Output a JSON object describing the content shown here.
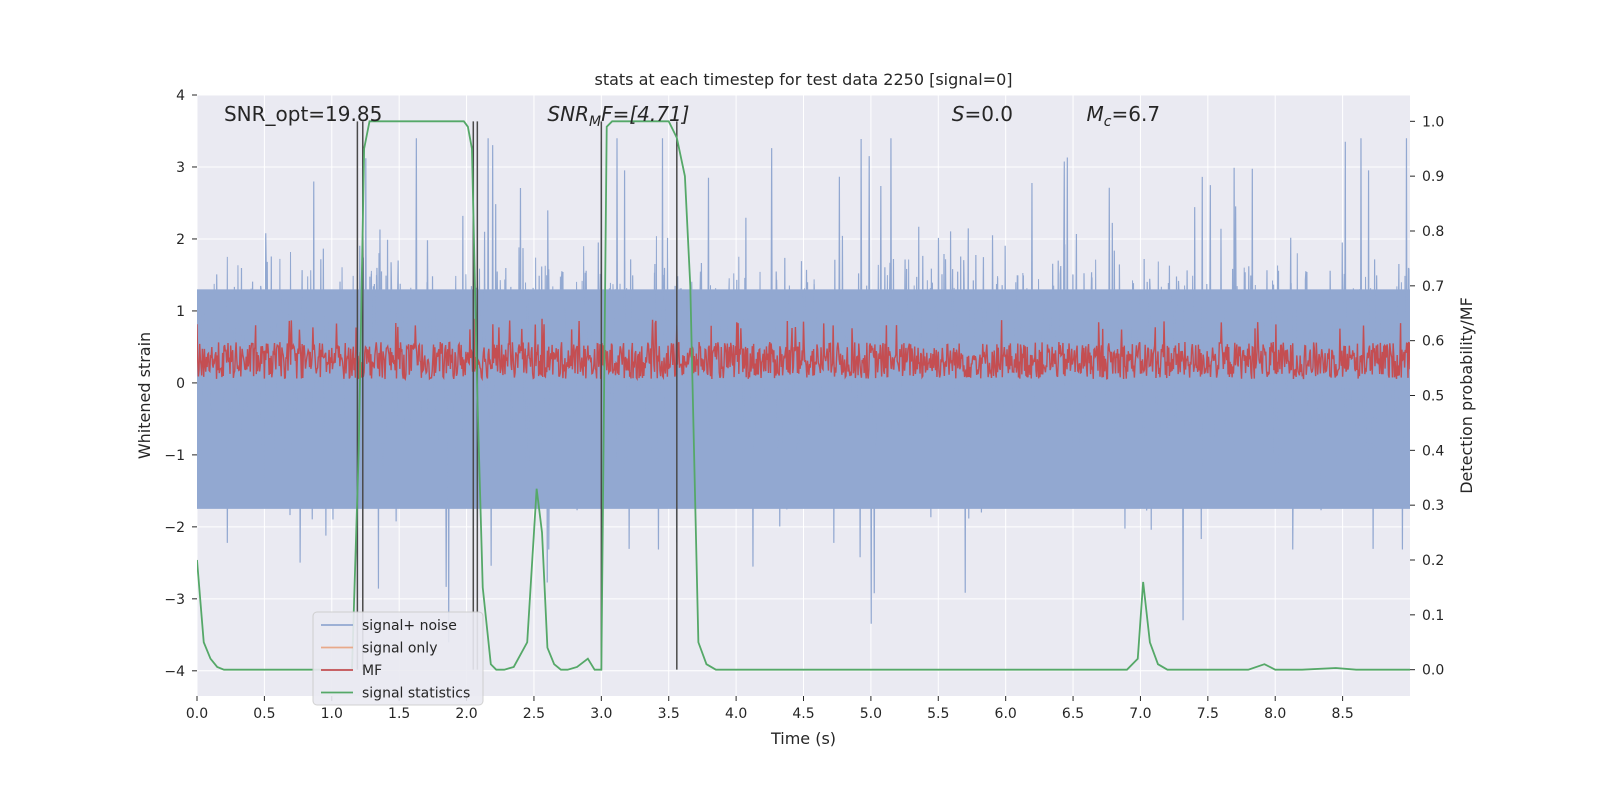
{
  "chart_data": {
    "type": "line",
    "title": "stats at each timestep for test data 2250 [signal=0]",
    "xlabel": "Time (s)",
    "ylabel": "Whitened strain",
    "ylabel_right": "Detection probability/MF",
    "xlim": [
      0.0,
      9.0
    ],
    "ylim": [
      -4.35,
      4.0
    ],
    "ylim_right": [
      -0.048,
      1.048
    ],
    "x_ticks": [
      "0.0",
      "0.5",
      "1.0",
      "1.5",
      "2.0",
      "2.5",
      "3.0",
      "3.5",
      "4.0",
      "4.5",
      "5.0",
      "5.5",
      "6.0",
      "6.5",
      "7.0",
      "7.5",
      "8.0",
      "8.5"
    ],
    "y_ticks_left": [
      "4",
      "3",
      "2",
      "1",
      "0",
      "−1",
      "−2",
      "−3",
      "−4"
    ],
    "y_ticks_right": [
      "1.0",
      "0.9",
      "0.8",
      "0.7",
      "0.6",
      "0.5",
      "0.4",
      "0.3",
      "0.2",
      "0.1",
      "0.0"
    ],
    "grid": true,
    "legend_position": "lower-left",
    "annotations": {
      "snr_opt": "SNR_opt=19.85",
      "snr_mf_base": "SNR",
      "snr_mf_sub": "M",
      "snr_mf_rest": "F=[4.71]",
      "s_base": "S",
      "s_rest": "=0.0",
      "mc_base": "M",
      "mc_sub": "c",
      "mc_rest": "=6.7"
    },
    "series": [
      {
        "name": "signal+ noise",
        "color": "#92a8d1",
        "description_level": "noise band roughly between -2 and +2.5 with peaks to ±3.3"
      },
      {
        "name": "signal only",
        "color": "#e8a98a",
        "values": []
      },
      {
        "name": "MF",
        "color": "#c44e52",
        "axis": "right",
        "range": [
          0.53,
          0.62
        ]
      },
      {
        "name": "signal statistics",
        "color": "#55a868",
        "axis": "right",
        "x": [
          0.0,
          0.05,
          0.1,
          0.15,
          0.2,
          0.3,
          0.5,
          0.8,
          1.0,
          1.15,
          1.2,
          1.24,
          1.28,
          1.35,
          1.5,
          1.8,
          1.98,
          2.01,
          2.04,
          2.08,
          2.12,
          2.18,
          2.22,
          2.28,
          2.35,
          2.45,
          2.52,
          2.56,
          2.6,
          2.65,
          2.7,
          2.75,
          2.82,
          2.9,
          2.95,
          3.0,
          3.04,
          3.08,
          3.15,
          3.3,
          3.5,
          3.56,
          3.62,
          3.66,
          3.72,
          3.78,
          3.85,
          4.0,
          5.0,
          6.0,
          6.9,
          6.98,
          7.02,
          7.07,
          7.13,
          7.2,
          7.3,
          7.8,
          7.92,
          8.0,
          8.2,
          8.45,
          8.6,
          9.0
        ],
        "y": [
          0.2,
          0.05,
          0.02,
          0.005,
          0.0,
          0.0,
          0.0,
          0.0,
          0.0,
          0.0,
          0.4,
          0.95,
          1.0,
          1.0,
          1.0,
          1.0,
          1.0,
          0.99,
          0.95,
          0.5,
          0.15,
          0.01,
          0.0,
          0.0,
          0.005,
          0.05,
          0.33,
          0.25,
          0.04,
          0.01,
          0.0,
          0.0,
          0.005,
          0.02,
          0.0,
          0.0,
          0.99,
          1.0,
          1.0,
          1.0,
          1.0,
          0.97,
          0.9,
          0.7,
          0.05,
          0.01,
          0.0,
          0.0,
          0.0,
          0.0,
          0.0,
          0.02,
          0.16,
          0.05,
          0.01,
          0.0,
          0.0,
          0.0,
          0.01,
          0.0,
          0.0,
          0.003,
          0.0,
          0.0
        ]
      }
    ],
    "vertical_lines": {
      "color": "#4a4a4a",
      "x": [
        1.19,
        1.23,
        2.05,
        2.08,
        3.0,
        3.56
      ]
    },
    "colors": {
      "plot_background": "#eaeaf2",
      "grid": "#ffffff"
    }
  }
}
